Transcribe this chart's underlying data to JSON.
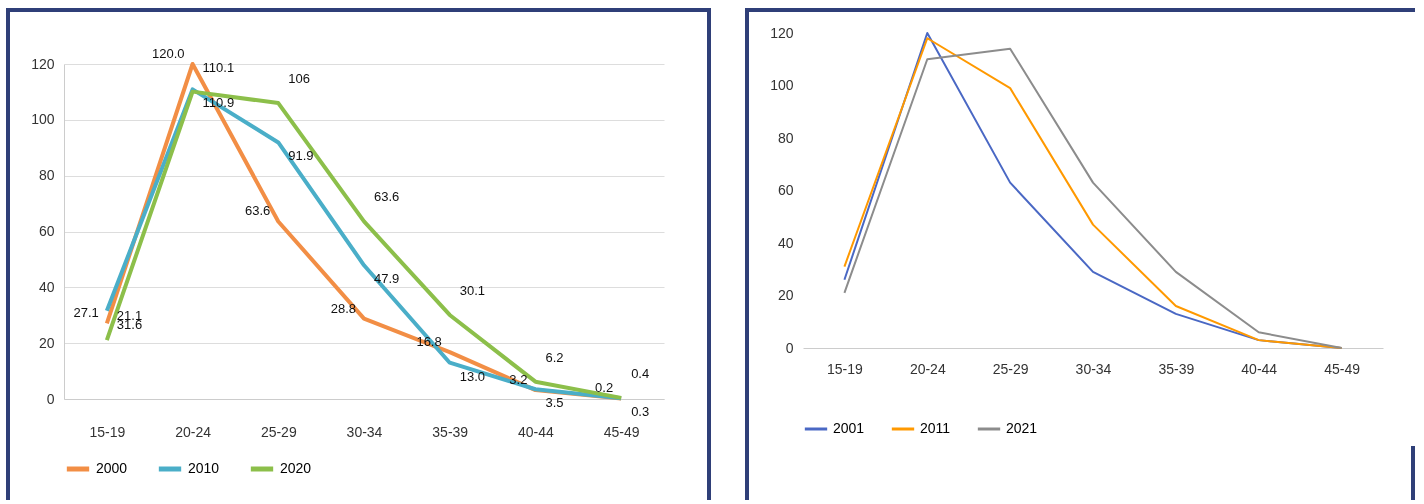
{
  "chart_data": [
    {
      "type": "line",
      "categories": [
        "15-19",
        "20-24",
        "25-29",
        "30-34",
        "35-39",
        "40-44",
        "45-49"
      ],
      "ylim": [
        0,
        120
      ],
      "yticks": [
        0,
        20,
        40,
        60,
        80,
        100,
        120
      ],
      "grid": "y",
      "legend": "bottom",
      "series": [
        {
          "name": "2000",
          "color": "#f28e45",
          "values": [
            27.1,
            120.0,
            63.6,
            28.8,
            16.8,
            3.2,
            0.2
          ],
          "value_labels": [
            "27.1",
            "120.0",
            "63.6",
            "28.8",
            "16.8",
            "3.2",
            "0.2"
          ]
        },
        {
          "name": "2010",
          "color": "#4aaec8",
          "values": [
            31.6,
            110.9,
            91.9,
            47.9,
            13.0,
            3.5,
            0.3
          ],
          "value_labels": [
            "31.6",
            "110.9",
            "91.9",
            "47.9",
            "13.0",
            "3.5",
            "0.3"
          ]
        },
        {
          "name": "2020",
          "color": "#8cbf4a",
          "values": [
            21.1,
            110.1,
            106,
            63.6,
            30.1,
            6.2,
            0.4
          ],
          "value_labels": [
            "21.1",
            "110.1",
            "106",
            "63.6",
            "30.1",
            "6.2",
            "0.4"
          ]
        }
      ]
    },
    {
      "type": "line",
      "categories": [
        "15-19",
        "20-24",
        "25-29",
        "30-34",
        "35-39",
        "40-44",
        "45-49"
      ],
      "ylim": [
        0,
        120
      ],
      "yticks": [
        0,
        20,
        40,
        60,
        80,
        100,
        120
      ],
      "legend": "bottom",
      "series": [
        {
          "name": "2001",
          "color": "#4a68c4",
          "values": [
            26,
            120,
            63,
            29,
            13,
            3,
            0
          ]
        },
        {
          "name": "2011",
          "color": "#ff9900",
          "values": [
            31,
            118,
            99,
            47,
            16,
            3,
            0
          ]
        },
        {
          "name": "2021",
          "color": "#8c8c8c",
          "values": [
            21,
            110,
            114,
            63,
            29,
            6,
            0
          ]
        }
      ]
    }
  ]
}
